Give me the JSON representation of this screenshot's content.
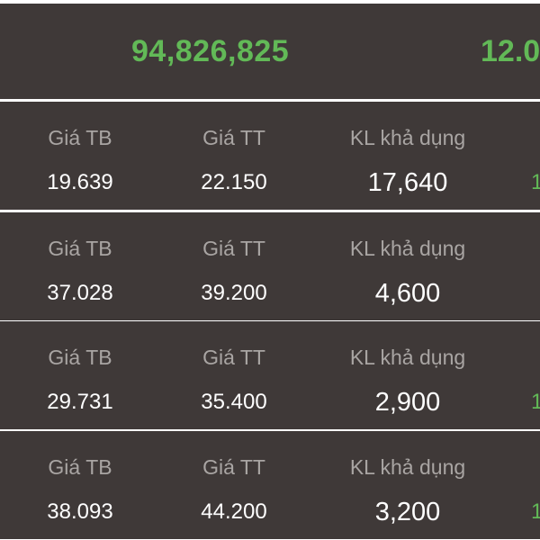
{
  "summary": {
    "total_value": "94,826,825",
    "percent_partial": "12.0"
  },
  "columns": {
    "avg_price_label": "Giá TB",
    "market_price_label": "Giá TT",
    "available_qty_label": "KL khả dụng"
  },
  "holdings": [
    {
      "avg_price": "19.639",
      "market_price": "22.150",
      "available_qty": "17,640",
      "edge": "1"
    },
    {
      "avg_price": "37.028",
      "market_price": "39.200",
      "available_qty": "4,600",
      "edge": ""
    },
    {
      "avg_price": "29.731",
      "market_price": "35.400",
      "available_qty": "2,900",
      "edge": "1"
    },
    {
      "avg_price": "38.093",
      "market_price": "44.200",
      "available_qty": "3,200",
      "edge": "1"
    }
  ],
  "colors": {
    "background": "#3f3938",
    "positive": "#62b957",
    "label": "#a9a5a3",
    "value": "#ffffff",
    "divider": "#ffffff"
  }
}
